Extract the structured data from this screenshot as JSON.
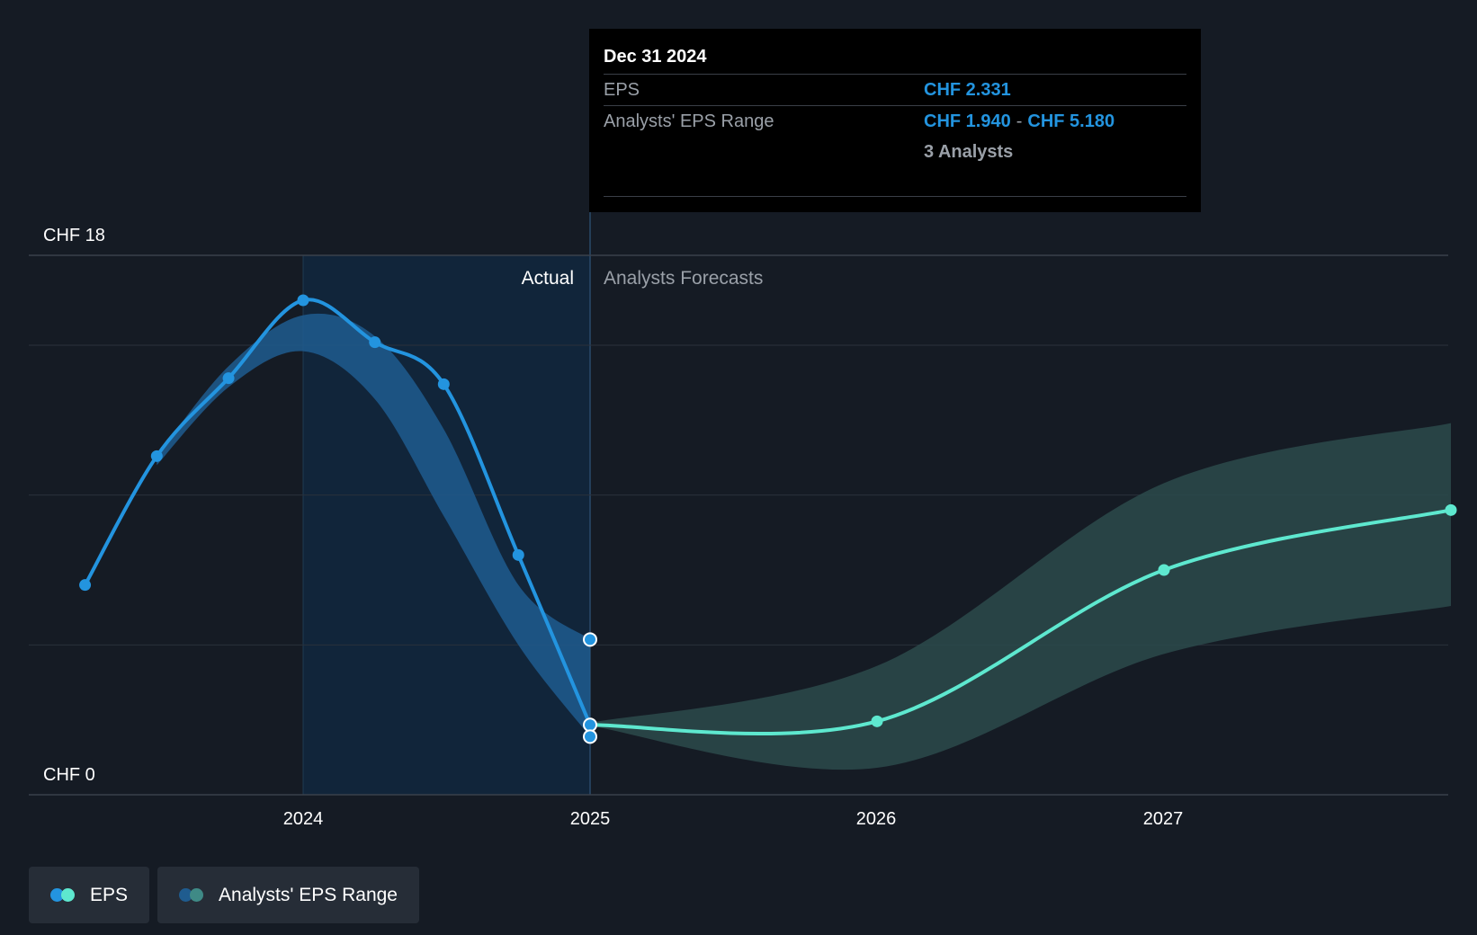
{
  "chart_data": {
    "type": "line",
    "y_axis": {
      "min": 0,
      "max": 18,
      "top_label": "CHF 18",
      "bottom_label": "CHF 0"
    },
    "x_axis": {
      "ticks": [
        "2024",
        "2025",
        "2026",
        "2027"
      ]
    },
    "regions": {
      "actual_label": "Actual",
      "forecast_label": "Analysts Forecasts"
    },
    "series": [
      {
        "name": "EPS",
        "kind": "actual",
        "color": "#2394df",
        "points": [
          {
            "x": 2023.24,
            "y": 7.0
          },
          {
            "x": 2023.49,
            "y": 11.3
          },
          {
            "x": 2023.74,
            "y": 13.9
          },
          {
            "x": 2024.0,
            "y": 16.5
          },
          {
            "x": 2024.25,
            "y": 15.1
          },
          {
            "x": 2024.49,
            "y": 13.7
          },
          {
            "x": 2024.75,
            "y": 8.0
          },
          {
            "x": 2025.0,
            "y": 2.331
          }
        ]
      },
      {
        "name": "EPS",
        "kind": "forecast",
        "color": "#5ee8cf",
        "points": [
          {
            "x": 2025.0,
            "y": 2.331
          },
          {
            "x": 2026.0,
            "y": 2.45
          },
          {
            "x": 2027.0,
            "y": 7.5
          },
          {
            "x": 2028.0,
            "y": 9.5
          }
        ]
      }
    ],
    "range_actual": {
      "name": "Analysts' EPS Range",
      "color": "#1f5c8f",
      "points": [
        {
          "x": 2023.49,
          "low": 11.0,
          "high": 11.3
        },
        {
          "x": 2023.74,
          "low": 13.6,
          "high": 14.3
        },
        {
          "x": 2024.0,
          "low": 14.8,
          "high": 16.0
        },
        {
          "x": 2024.25,
          "low": 13.2,
          "high": 15.3
        },
        {
          "x": 2024.49,
          "low": 9.3,
          "high": 12.2
        },
        {
          "x": 2024.75,
          "low": 5.0,
          "high": 7.0
        },
        {
          "x": 2025.0,
          "low": 1.94,
          "high": 5.18
        }
      ]
    },
    "range_forecast": {
      "name": "Analysts' EPS Range",
      "color": "#2b4a4b",
      "points": [
        {
          "x": 2025.0,
          "low": 2.3,
          "high": 2.4
        },
        {
          "x": 2026.0,
          "low": 0.9,
          "high": 4.3
        },
        {
          "x": 2027.0,
          "low": 4.7,
          "high": 10.4
        },
        {
          "x": 2028.0,
          "low": 6.3,
          "high": 12.4
        }
      ]
    },
    "tooltip_markers": [
      {
        "x": 2025.0,
        "y": 5.18
      },
      {
        "x": 2025.0,
        "y": 2.331
      },
      {
        "x": 2025.0,
        "y": 1.94
      }
    ]
  },
  "tooltip": {
    "date": "Dec 31 2024",
    "eps_label": "EPS",
    "eps_value": "CHF 2.331",
    "range_label": "Analysts' EPS Range",
    "range_low": "CHF 1.940",
    "range_sep": "-",
    "range_high": "CHF 5.180",
    "analysts": "3 Analysts"
  },
  "legend": {
    "eps_label": "EPS",
    "range_label": "Analysts' EPS Range"
  },
  "colors": {
    "background": "#151b24",
    "actual_line": "#2394df",
    "forecast_line": "#5ee8cf",
    "actual_band": "#1f5c8f",
    "forecast_band": "#2b4a4b",
    "actual_shade": "#11273d"
  }
}
